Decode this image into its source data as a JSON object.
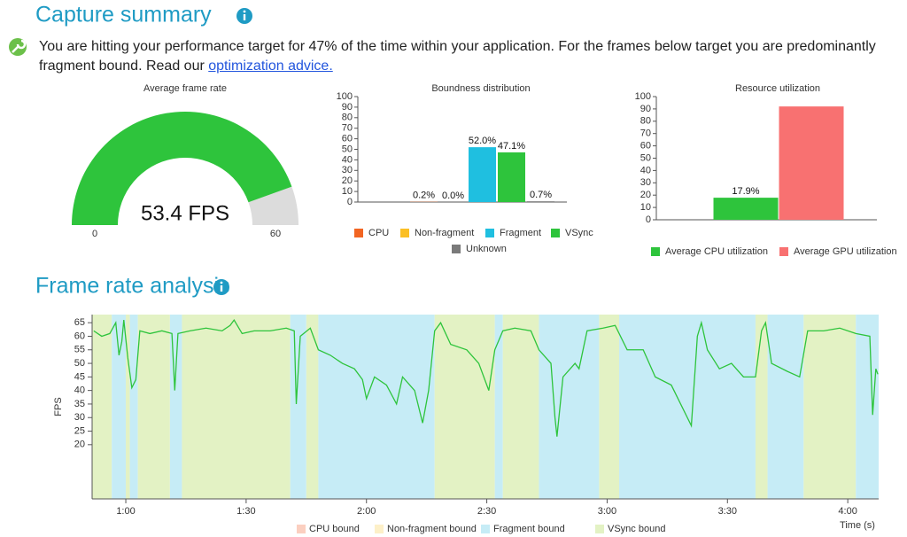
{
  "header": {
    "title": "Capture summary",
    "summary": "You are hitting your performance target for 47% of the time within your application. For the frames below target you are predominantly fragment bound. Read our",
    "link": "optimization advice."
  },
  "chart_data": [
    {
      "type": "gauge",
      "title": "Average frame rate",
      "value": 53.4,
      "value_label": "53.4 FPS",
      "xlim": [
        0,
        60
      ],
      "xticks": [
        0,
        60
      ],
      "color": "#2ec43c",
      "track_color": "#dcdcdc"
    },
    {
      "type": "bar",
      "title": "Boundness distribution",
      "categories": [
        "CPU",
        "Non-fragment",
        "Fragment",
        "VSync",
        "Unknown"
      ],
      "values": [
        0.2,
        0.0,
        52.0,
        47.1,
        0.7
      ],
      "value_labels": [
        "0.2%",
        "0.0%",
        "52.0%",
        "47.1%",
        "0.7%"
      ],
      "colors": [
        "#f26522",
        "#fbbf24",
        "#1fbfe0",
        "#2ec43c",
        "#7a7a7a"
      ],
      "ylim": [
        0,
        100
      ],
      "yticks": [
        0,
        10,
        20,
        30,
        40,
        50,
        60,
        70,
        80,
        90,
        100
      ],
      "legend": "bottom"
    },
    {
      "type": "bar",
      "title": "Resource utilization",
      "categories": [
        "Average CPU utilization",
        "Average GPU utilization"
      ],
      "values": [
        17.9,
        92
      ],
      "value_labels": [
        "17.9%",
        null
      ],
      "colors": [
        "#2ec43c",
        "#f87171"
      ],
      "ylim": [
        0,
        100
      ],
      "yticks": [
        0,
        10,
        20,
        30,
        40,
        50,
        60,
        70,
        80,
        90,
        100
      ],
      "legend": "bottom"
    },
    {
      "type": "line",
      "title": "Frame rate analysis",
      "x_label": "Time (s)",
      "y_label": "FPS",
      "xlim": [
        51.6,
        247.7
      ],
      "xticks": [
        {
          "value": 60,
          "label": "1:00"
        },
        {
          "value": 90,
          "label": "1:30"
        },
        {
          "value": 120,
          "label": "2:00"
        },
        {
          "value": 150,
          "label": "2:30"
        },
        {
          "value": 180,
          "label": "3:00"
        },
        {
          "value": 210,
          "label": "3:30"
        },
        {
          "value": 240,
          "label": "4:00"
        }
      ],
      "ylim": [
        0,
        68
      ],
      "yticks": [
        20,
        25,
        30,
        35,
        40,
        45,
        50,
        55,
        60,
        65
      ],
      "x": [
        52,
        54,
        56,
        57.5,
        58.3,
        59,
        59.5,
        60.5,
        61.5,
        62.5,
        63.5,
        66,
        69,
        71.5,
        72.2,
        73,
        76,
        80,
        84,
        86,
        87,
        89,
        92,
        96,
        100,
        102,
        102.5,
        103.5,
        106,
        108,
        111,
        114,
        117,
        119,
        120,
        122,
        125,
        127.5,
        129,
        132,
        134,
        135.5,
        137,
        138.5,
        141,
        145,
        148,
        150.5,
        152,
        154,
        157,
        161,
        163,
        166,
        167,
        167.5,
        169,
        172,
        173,
        175,
        179,
        182,
        185,
        189,
        192,
        196,
        200,
        201,
        202.5,
        203.5,
        205,
        208,
        211,
        214,
        217,
        218.5,
        219.5,
        221,
        225,
        228,
        230,
        234,
        238,
        242,
        245.5,
        246.2,
        247,
        247.5
      ],
      "series": [
        {
          "color": "#2ec43c",
          "values": [
            62,
            60,
            61,
            65,
            53,
            58,
            66,
            52,
            41,
            44,
            62,
            61,
            62,
            61,
            40,
            61,
            62,
            63,
            62,
            64,
            66,
            61,
            62,
            62,
            63,
            62,
            35,
            60,
            63,
            55,
            53,
            50,
            48,
            44,
            37,
            45,
            42,
            35,
            45,
            40,
            28,
            40,
            62,
            65,
            57,
            55,
            50,
            40,
            55,
            62,
            63,
            62,
            55,
            50,
            30,
            23,
            45,
            50,
            48,
            62,
            63,
            64,
            55,
            55,
            45,
            42,
            30,
            27,
            60,
            65,
            55,
            48,
            50,
            45,
            45,
            62,
            65,
            50,
            47,
            45,
            62,
            62,
            63,
            61,
            60,
            31,
            48,
            46
          ]
        }
      ],
      "legend": [
        "CPU bound",
        "Non-fragment bound",
        "Fragment bound",
        "VSync bound"
      ],
      "legend_colors": [
        "#fbcfc0",
        "#fdf0c8",
        "#c6ecf6",
        "#e3f2c4"
      ],
      "regions": [
        {
          "start": 51.6,
          "end": 56.5,
          "bound": "VSync bound"
        },
        {
          "start": 56.5,
          "end": 60,
          "bound": "Fragment bound"
        },
        {
          "start": 60,
          "end": 61,
          "bound": "VSync bound"
        },
        {
          "start": 61,
          "end": 63,
          "bound": "Fragment bound"
        },
        {
          "start": 63,
          "end": 71,
          "bound": "VSync bound"
        },
        {
          "start": 71,
          "end": 74,
          "bound": "Fragment bound"
        },
        {
          "start": 74,
          "end": 101,
          "bound": "VSync bound"
        },
        {
          "start": 101,
          "end": 105,
          "bound": "Fragment bound"
        },
        {
          "start": 105,
          "end": 108,
          "bound": "VSync bound"
        },
        {
          "start": 108,
          "end": 137,
          "bound": "Fragment bound"
        },
        {
          "start": 137,
          "end": 152,
          "bound": "VSync bound"
        },
        {
          "start": 152,
          "end": 154,
          "bound": "Fragment bound"
        },
        {
          "start": 154,
          "end": 163,
          "bound": "VSync bound"
        },
        {
          "start": 163,
          "end": 178,
          "bound": "Fragment bound"
        },
        {
          "start": 178,
          "end": 183,
          "bound": "VSync bound"
        },
        {
          "start": 183,
          "end": 217,
          "bound": "Fragment bound"
        },
        {
          "start": 217,
          "end": 220,
          "bound": "VSync bound"
        },
        {
          "start": 220,
          "end": 229,
          "bound": "Fragment bound"
        },
        {
          "start": 229,
          "end": 242,
          "bound": "VSync bound"
        },
        {
          "start": 242,
          "end": 247.7,
          "bound": "Fragment bound"
        }
      ]
    }
  ]
}
